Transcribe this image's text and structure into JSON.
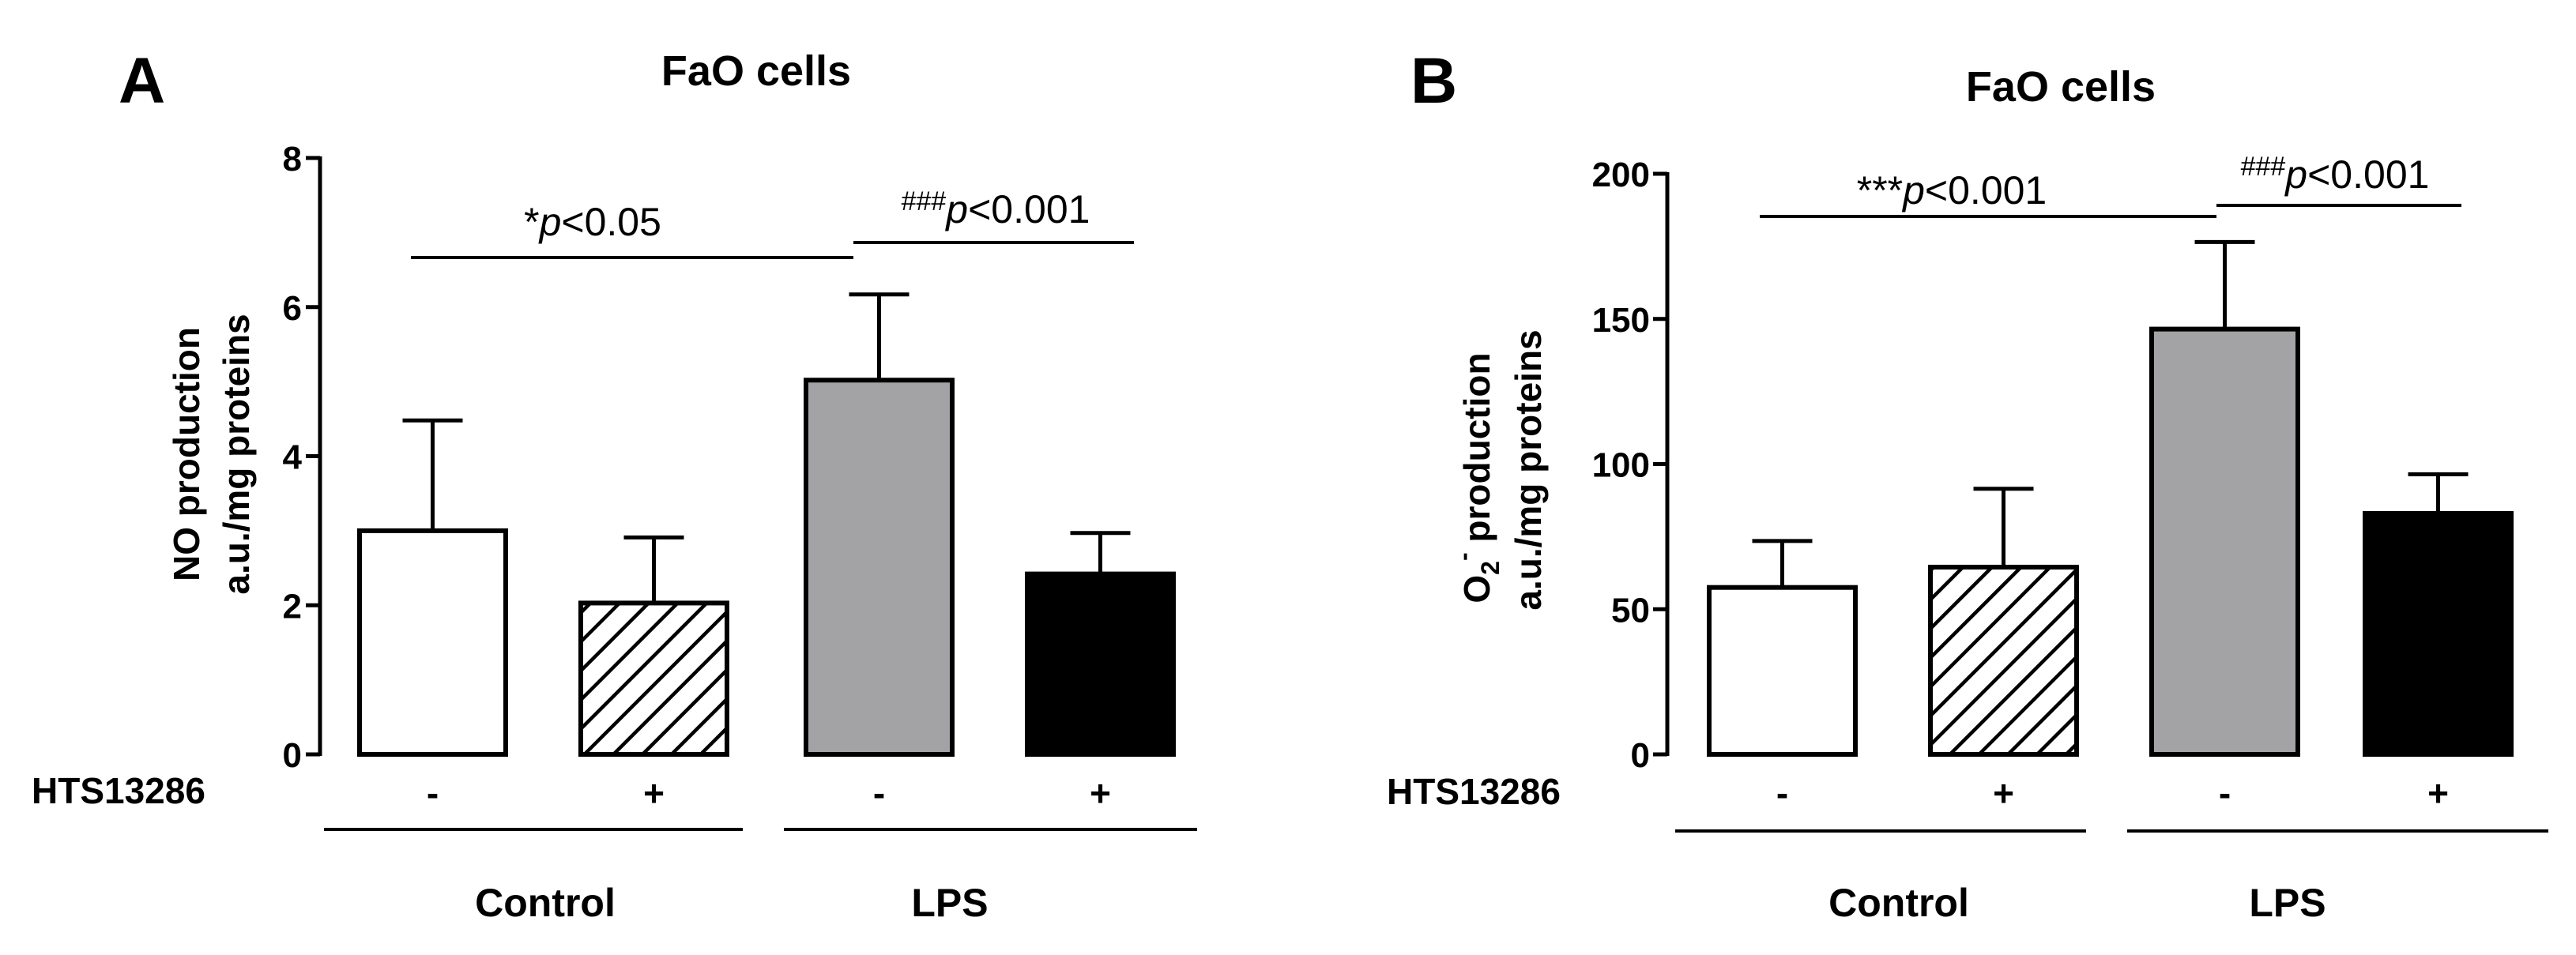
{
  "panels": [
    {
      "panel_label": "A",
      "title": "FaO cells",
      "ylabel_line1": "NO production",
      "ylabel_line2": "a.u./mg proteins",
      "treatment_label": "HTS13286",
      "group_labels": [
        "Control",
        "LPS"
      ],
      "sig_left": {
        "prefix": "*",
        "p": "p",
        "rest": "<0.05"
      },
      "sig_right": {
        "prefix": "###",
        "p": "p",
        "rest": "<0.001"
      }
    },
    {
      "panel_label": "B",
      "title": "FaO cells",
      "ylabel_line1_prefix": "O",
      "ylabel_line1_sub": "2",
      "ylabel_line1_sup": "-",
      "ylabel_line1_rest": " production",
      "ylabel_line2": "a.u./mg proteins",
      "treatment_label": "HTS13286",
      "group_labels": [
        "Control",
        "LPS"
      ],
      "sig_left": {
        "prefix": "***",
        "p": "p",
        "rest": "<0.001"
      },
      "sig_right": {
        "prefix": "###",
        "p": "p",
        "rest": "<0.001"
      }
    }
  ],
  "chart_data": [
    {
      "type": "bar",
      "title": "FaO cells",
      "ylabel": "NO production a.u./mg proteins",
      "categories": [
        "-",
        "+",
        "-",
        "+"
      ],
      "groups": [
        "Control",
        "Control",
        "LPS",
        "LPS"
      ],
      "values": [
        3.0,
        2.03,
        5.02,
        2.42
      ],
      "errors": [
        1.48,
        0.88,
        1.15,
        0.55
      ],
      "fills": [
        "#ffffff",
        "hatch",
        "#a3a3a6",
        "#000000"
      ],
      "ylim": [
        0,
        8
      ],
      "yticks": [
        0,
        2,
        4,
        6,
        8
      ]
    },
    {
      "type": "bar",
      "title": "FaO cells",
      "ylabel": "O2- production a.u./mg proteins",
      "categories": [
        "-",
        "+",
        "-",
        "+"
      ],
      "groups": [
        "Control",
        "Control",
        "LPS",
        "LPS"
      ],
      "values": [
        57.5,
        64.5,
        146.5,
        83.0
      ],
      "errors": [
        16.0,
        27.0,
        30.0,
        13.5
      ],
      "fills": [
        "#ffffff",
        "hatch",
        "#a3a3a6",
        "#000000"
      ],
      "ylim": [
        0,
        200
      ],
      "yticks": [
        0,
        50,
        100,
        150,
        200
      ]
    }
  ]
}
